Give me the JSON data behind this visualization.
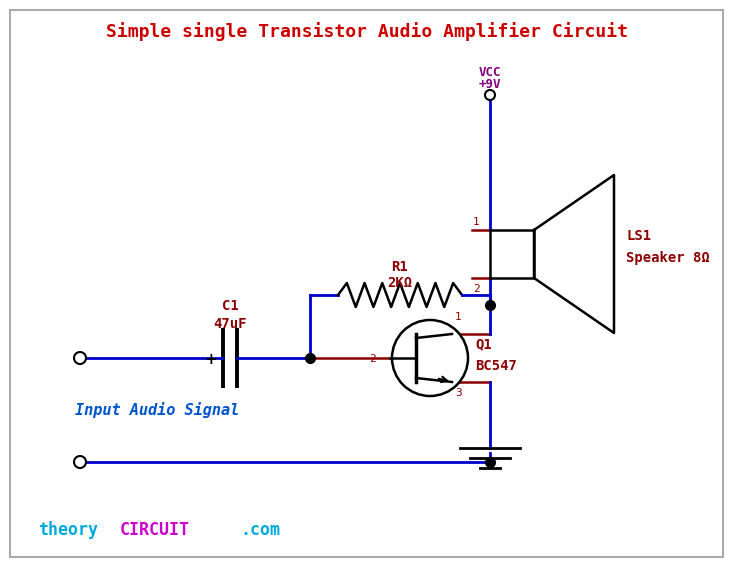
{
  "title": "Simple single Transistor Audio Amplifier Circuit",
  "title_color": "#cc0000",
  "title_fontsize": 13,
  "bg_color": "#ffffff",
  "border_color": "#aaaaaa",
  "wire_color": "#0000cc",
  "black": "#000000",
  "dark_red": "#8b0000",
  "purple": "#800080",
  "blue_label": "#0055cc",
  "cyan_wm": "#00aadd",
  "magenta_wm": "#cc00cc",
  "vcc_label": "VCC",
  "vcc_value": "+9V",
  "r1_label": "R1",
  "r1_value": "2KΩ",
  "c1_label": "C1",
  "c1_value": "47uF",
  "q1_label": "Q1",
  "q1_value": "BC547",
  "ls1_label": "LS1",
  "ls1_value": "Speaker 8Ω",
  "input_label": "Input Audio Signal",
  "wm_theory": "theory",
  "wm_circuit": "CIRCUIT",
  "wm_com": ".com",
  "figsize": [
    7.33,
    5.67
  ],
  "dpi": 100
}
